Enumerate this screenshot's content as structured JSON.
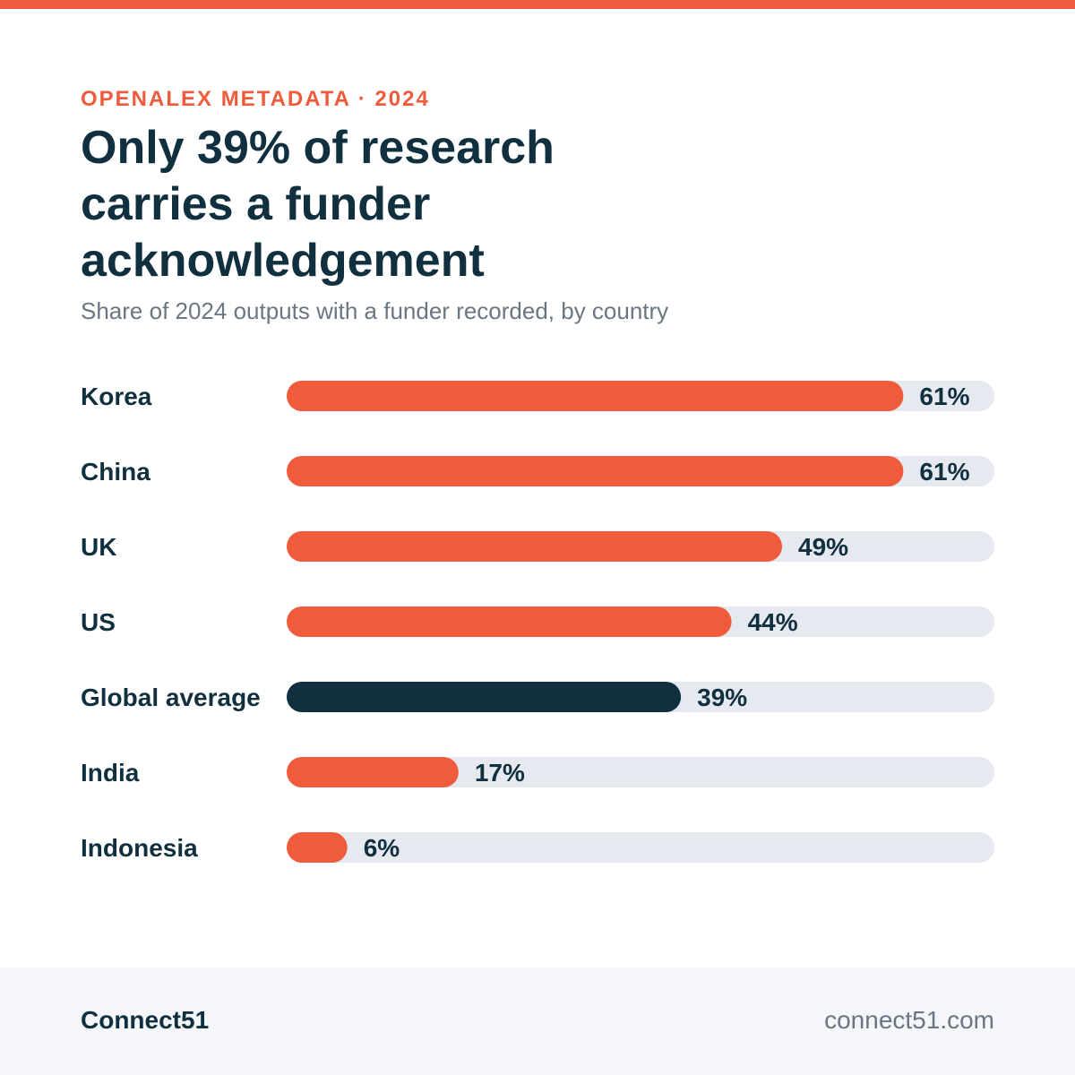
{
  "colors": {
    "accent": "#ef5b3b",
    "highlight": "#11303f",
    "track": "#e6e9ef",
    "text": "#11303f",
    "muted": "#6b7683",
    "footer_bg": "#f4f6fa"
  },
  "header": {
    "eyebrow": "OPENALEX METADATA · 2024",
    "title": "Only 39% of research carries a funder acknowledgement",
    "subtitle": "Share of 2024 outputs with a funder recorded, by country"
  },
  "chart_data": {
    "type": "bar",
    "orientation": "horizontal",
    "categories": [
      "Korea",
      "China",
      "UK",
      "US",
      "Global average",
      "India",
      "Indonesia"
    ],
    "values": [
      61,
      61,
      49,
      44,
      39,
      17,
      6
    ],
    "value_labels": [
      "61%",
      "61%",
      "49%",
      "44%",
      "39%",
      "17%",
      "6%"
    ],
    "highlight_category": "Global average",
    "xlim": [
      0,
      70
    ],
    "grid": false
  },
  "footer": {
    "brand": "Connect51",
    "site": "connect51.com"
  }
}
